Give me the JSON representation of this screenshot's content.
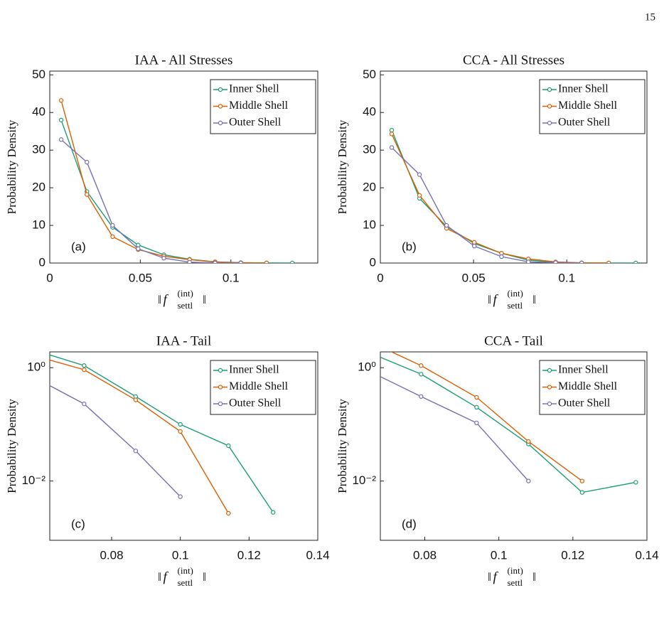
{
  "page_number": "15",
  "chart_data": [
    {
      "type": "line",
      "title": "IAA - All Stresses",
      "ylabel": "Probability Density",
      "annotation": "(a)",
      "xlabel": {
        "open": "‖",
        "base": "f⃗",
        "sup": "(int)",
        "sub": "settl",
        "close": "‖"
      },
      "x": [
        0.0063,
        0.0205,
        0.0347,
        0.0488,
        0.063,
        0.0772,
        0.0913,
        0.1055,
        0.1197,
        0.1339
      ],
      "xlim": [
        0,
        0.148
      ],
      "ylim": [
        0,
        51
      ],
      "xticks": [
        0,
        0.05,
        0.1
      ],
      "yticks": [
        0,
        10,
        20,
        30,
        40,
        50
      ],
      "yscale": "linear",
      "grid": false,
      "legend": "upper right",
      "series": [
        {
          "name": "Inner Shell",
          "color": "#1b9e77",
          "values": [
            38,
            19,
            9.5,
            4.8,
            2.2,
            1,
            0.31,
            0.1,
            0.042,
            0.003
          ]
        },
        {
          "name": "Middle Shell",
          "color": "#d95f02",
          "values": [
            43.2,
            18.2,
            7,
            3.6,
            1.8,
            0.9,
            0.27,
            0.075,
            0.003,
            null
          ]
        },
        {
          "name": "Outer Shell",
          "color": "#7570b3",
          "values": [
            32.8,
            26.8,
            10,
            3.8,
            1.3,
            0.23,
            0.034,
            0.005,
            null,
            null
          ]
        }
      ]
    },
    {
      "type": "line",
      "title": "CCA - All Stresses",
      "ylabel": "Probability Density",
      "annotation": "(b)",
      "xlabel": {
        "open": "‖",
        "base": "f⃗",
        "sup": "(int)",
        "sub": "settl",
        "close": "‖"
      },
      "x": [
        0.0061,
        0.021,
        0.0355,
        0.0504,
        0.065,
        0.0794,
        0.094,
        0.108,
        0.1225,
        0.137
      ],
      "xlim": [
        0,
        0.143
      ],
      "ylim": [
        0,
        51
      ],
      "xticks": [
        0,
        0.05,
        0.1
      ],
      "yticks": [
        0,
        10,
        20,
        30,
        40,
        50
      ],
      "yscale": "linear",
      "grid": false,
      "legend": "upper right",
      "series": [
        {
          "name": "Inner Shell",
          "color": "#1b9e77",
          "values": [
            35.3,
            17.2,
            9.7,
            5.2,
            2.6,
            0.77,
            0.2,
            0.045,
            0.0063,
            0.0095
          ]
        },
        {
          "name": "Middle Shell",
          "color": "#d95f02",
          "values": [
            34.3,
            18,
            9.2,
            5.5,
            2.6,
            1.09,
            0.3,
            0.05,
            0.01,
            null
          ]
        },
        {
          "name": "Outer Shell",
          "color": "#7570b3",
          "values": [
            30.7,
            23.5,
            10,
            4.5,
            1.7,
            0.31,
            0.106,
            0.01,
            null,
            null
          ]
        }
      ]
    },
    {
      "type": "line",
      "title": "IAA - Tail",
      "ylabel": "Probability Density",
      "annotation": "(c)",
      "xlabel": {
        "open": "‖",
        "base": "f⃗",
        "sup": "(int)",
        "sub": "settl",
        "close": "‖"
      },
      "x": [
        0.058,
        0.072,
        0.087,
        0.1,
        0.114,
        0.127
      ],
      "xlim": [
        0.062,
        0.14
      ],
      "ylim": [
        0.0009,
        1.9
      ],
      "xticks": [
        0.08,
        0.1,
        0.12,
        0.14
      ],
      "yticks": [
        {
          "value": 0.01,
          "label": "10⁻²"
        },
        {
          "value": 1,
          "label": "10⁰"
        }
      ],
      "yscale": "log",
      "grid": false,
      "legend": "upper right",
      "series": [
        {
          "name": "Inner Shell",
          "color": "#1b9e77",
          "values": [
            2.0,
            1.09,
            0.31,
            0.1,
            0.042,
            0.0028
          ]
        },
        {
          "name": "Middle Shell",
          "color": "#d95f02",
          "values": [
            1.6,
            0.92,
            0.27,
            0.075,
            0.0027,
            null
          ]
        },
        {
          "name": "Outer Shell",
          "color": "#7570b3",
          "values": [
            0.65,
            0.23,
            0.034,
            0.0053,
            null,
            null
          ]
        }
      ]
    },
    {
      "type": "line",
      "title": "CCA - Tail",
      "ylabel": "Probability Density",
      "annotation": "(d)",
      "xlabel": {
        "open": "‖",
        "base": "f⃗",
        "sup": "(int)",
        "sub": "settl",
        "close": "‖"
      },
      "x": [
        0.0645,
        0.079,
        0.094,
        0.108,
        0.1225,
        0.137
      ],
      "xlim": [
        0.068,
        0.14
      ],
      "ylim": [
        0.0009,
        1.9
      ],
      "xticks": [
        0.08,
        0.1,
        0.12,
        0.14
      ],
      "yticks": [
        {
          "value": 0.01,
          "label": "10⁻²"
        },
        {
          "value": 1,
          "label": "10⁰"
        }
      ],
      "yscale": "log",
      "grid": false,
      "legend": "upper right",
      "series": [
        {
          "name": "Inner Shell",
          "color": "#1b9e77",
          "values": [
            1.9,
            0.77,
            0.2,
            0.045,
            0.0063,
            0.0095
          ]
        },
        {
          "name": "Middle Shell",
          "color": "#d95f02",
          "values": [
            3,
            1.09,
            0.3,
            0.05,
            0.01,
            null
          ]
        },
        {
          "name": "Outer Shell",
          "color": "#7570b3",
          "values": [
            0.9,
            0.31,
            0.106,
            0.01,
            null,
            null
          ]
        }
      ]
    }
  ]
}
